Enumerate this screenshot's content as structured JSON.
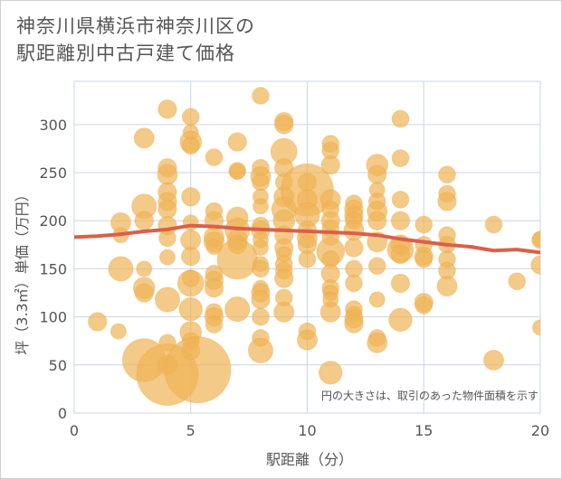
{
  "title_lines": [
    "神奈川県横浜市神奈川区の",
    "駅距離別中古戸建て価格"
  ],
  "chart_data": {
    "type": "scatter",
    "title": "神奈川県横浜市神奈川区の駅距離別中古戸建て価格",
    "xlabel": "駅距離（分）",
    "ylabel": "坪（3.3㎡）単価（万円）",
    "xlim": [
      0,
      20
    ],
    "ylim": [
      0,
      345
    ],
    "xticks": [
      0,
      5,
      10,
      15,
      20
    ],
    "yticks": [
      0,
      50,
      100,
      150,
      200,
      250,
      300
    ],
    "grid": true,
    "annotation": "円の大きさは、取引のあった物件面積を示す",
    "colors": {
      "bubble": "#f0b455",
      "trend": "#d9604a",
      "grid": "#c9d6e3"
    },
    "points": [
      {
        "x": 1,
        "y": 95,
        "s": 1.2
      },
      {
        "x": 1.9,
        "y": 85,
        "s": 1.0
      },
      {
        "x": 2,
        "y": 185,
        "s": 1.0
      },
      {
        "x": 2,
        "y": 198,
        "s": 1.3
      },
      {
        "x": 2,
        "y": 150,
        "s": 1.6
      },
      {
        "x": 3,
        "y": 286,
        "s": 1.3
      },
      {
        "x": 3,
        "y": 215,
        "s": 1.6
      },
      {
        "x": 3,
        "y": 200,
        "s": 1.2
      },
      {
        "x": 3,
        "y": 150,
        "s": 1.0
      },
      {
        "x": 3,
        "y": 130,
        "s": 1.4
      },
      {
        "x": 3,
        "y": 125,
        "s": 1.2
      },
      {
        "x": 3,
        "y": 55,
        "s": 2.8
      },
      {
        "x": 4,
        "y": 316,
        "s": 1.2
      },
      {
        "x": 4,
        "y": 255,
        "s": 1.2
      },
      {
        "x": 4,
        "y": 248,
        "s": 1.3
      },
      {
        "x": 4,
        "y": 230,
        "s": 1.2
      },
      {
        "x": 4,
        "y": 220,
        "s": 1.2
      },
      {
        "x": 4,
        "y": 212,
        "s": 1.2
      },
      {
        "x": 4,
        "y": 195,
        "s": 1.2
      },
      {
        "x": 4,
        "y": 182,
        "s": 1.1
      },
      {
        "x": 4,
        "y": 162,
        "s": 1.0
      },
      {
        "x": 4,
        "y": 118,
        "s": 1.6
      },
      {
        "x": 4,
        "y": 73,
        "s": 1.1
      },
      {
        "x": 4,
        "y": 50,
        "s": 1.3
      },
      {
        "x": 4,
        "y": 40,
        "s": 4.0
      },
      {
        "x": 5,
        "y": 308,
        "s": 1.1
      },
      {
        "x": 5,
        "y": 292,
        "s": 1.0
      },
      {
        "x": 5,
        "y": 282,
        "s": 1.4
      },
      {
        "x": 5,
        "y": 278,
        "s": 1.1
      },
      {
        "x": 5,
        "y": 225,
        "s": 1.2
      },
      {
        "x": 5,
        "y": 198,
        "s": 1.0
      },
      {
        "x": 5,
        "y": 180,
        "s": 1.3
      },
      {
        "x": 5,
        "y": 163,
        "s": 1.2
      },
      {
        "x": 5,
        "y": 140,
        "s": 1.1
      },
      {
        "x": 5,
        "y": 135,
        "s": 1.7
      },
      {
        "x": 5,
        "y": 108,
        "s": 1.5
      },
      {
        "x": 5,
        "y": 84,
        "s": 1.4
      },
      {
        "x": 5,
        "y": 75,
        "s": 1.1
      },
      {
        "x": 5,
        "y": 65,
        "s": 1.2
      },
      {
        "x": 5.3,
        "y": 45,
        "s": 4.3
      },
      {
        "x": 6,
        "y": 266,
        "s": 1.1
      },
      {
        "x": 6,
        "y": 210,
        "s": 1.1
      },
      {
        "x": 6,
        "y": 200,
        "s": 1.2
      },
      {
        "x": 6,
        "y": 183,
        "s": 1.3
      },
      {
        "x": 6,
        "y": 178,
        "s": 1.3
      },
      {
        "x": 6,
        "y": 173,
        "s": 1.0
      },
      {
        "x": 6,
        "y": 145,
        "s": 1.1
      },
      {
        "x": 6,
        "y": 138,
        "s": 1.2
      },
      {
        "x": 6,
        "y": 130,
        "s": 1.2
      },
      {
        "x": 6,
        "y": 105,
        "s": 1.1
      },
      {
        "x": 6,
        "y": 100,
        "s": 1.2
      },
      {
        "x": 6,
        "y": 92,
        "s": 1.1
      },
      {
        "x": 7,
        "y": 282,
        "s": 1.2
      },
      {
        "x": 7,
        "y": 252,
        "s": 1.1
      },
      {
        "x": 7,
        "y": 251,
        "s": 1.0
      },
      {
        "x": 7,
        "y": 203,
        "s": 1.4
      },
      {
        "x": 7,
        "y": 190,
        "s": 1.6
      },
      {
        "x": 7,
        "y": 180,
        "s": 1.3
      },
      {
        "x": 7,
        "y": 175,
        "s": 1.2
      },
      {
        "x": 7,
        "y": 160,
        "s": 2.6
      },
      {
        "x": 7,
        "y": 108,
        "s": 1.6
      },
      {
        "x": 8,
        "y": 330,
        "s": 1.1
      },
      {
        "x": 8,
        "y": 255,
        "s": 1.1
      },
      {
        "x": 8,
        "y": 246,
        "s": 1.3
      },
      {
        "x": 8,
        "y": 240,
        "s": 1.1
      },
      {
        "x": 8,
        "y": 225,
        "s": 1.0
      },
      {
        "x": 8,
        "y": 215,
        "s": 1.0
      },
      {
        "x": 8,
        "y": 195,
        "s": 1.1
      },
      {
        "x": 8,
        "y": 190,
        "s": 1.2
      },
      {
        "x": 8,
        "y": 180,
        "s": 1.0
      },
      {
        "x": 8,
        "y": 172,
        "s": 1.0
      },
      {
        "x": 8,
        "y": 155,
        "s": 1.0
      },
      {
        "x": 8,
        "y": 150,
        "s": 1.1
      },
      {
        "x": 8,
        "y": 130,
        "s": 1.0
      },
      {
        "x": 8,
        "y": 125,
        "s": 1.2
      },
      {
        "x": 8,
        "y": 118,
        "s": 1.2
      },
      {
        "x": 8,
        "y": 100,
        "s": 1.1
      },
      {
        "x": 8,
        "y": 78,
        "s": 1.1
      },
      {
        "x": 8,
        "y": 65,
        "s": 1.6
      },
      {
        "x": 9,
        "y": 303,
        "s": 1.2
      },
      {
        "x": 9,
        "y": 300,
        "s": 1.2
      },
      {
        "x": 9,
        "y": 272,
        "s": 1.7
      },
      {
        "x": 9,
        "y": 255,
        "s": 1.2
      },
      {
        "x": 9,
        "y": 240,
        "s": 1.1
      },
      {
        "x": 9,
        "y": 225,
        "s": 1.3
      },
      {
        "x": 9,
        "y": 212,
        "s": 1.6
      },
      {
        "x": 9,
        "y": 200,
        "s": 1.4
      },
      {
        "x": 9,
        "y": 185,
        "s": 1.2
      },
      {
        "x": 9,
        "y": 172,
        "s": 1.2
      },
      {
        "x": 9,
        "y": 165,
        "s": 1.0
      },
      {
        "x": 9,
        "y": 155,
        "s": 1.1
      },
      {
        "x": 9,
        "y": 148,
        "s": 1.1
      },
      {
        "x": 9,
        "y": 140,
        "s": 1.2
      },
      {
        "x": 9,
        "y": 120,
        "s": 1.1
      },
      {
        "x": 9,
        "y": 105,
        "s": 1.3
      },
      {
        "x": 10,
        "y": 240,
        "s": 1.2
      },
      {
        "x": 10,
        "y": 232,
        "s": 3.4
      },
      {
        "x": 10,
        "y": 222,
        "s": 1.3
      },
      {
        "x": 10,
        "y": 206,
        "s": 1.6
      },
      {
        "x": 10,
        "y": 190,
        "s": 1.2
      },
      {
        "x": 10,
        "y": 182,
        "s": 1.3
      },
      {
        "x": 10,
        "y": 175,
        "s": 1.2
      },
      {
        "x": 10,
        "y": 160,
        "s": 1.1
      },
      {
        "x": 10,
        "y": 85,
        "s": 1.1
      },
      {
        "x": 10,
        "y": 76,
        "s": 1.3
      },
      {
        "x": 11,
        "y": 280,
        "s": 1.1
      },
      {
        "x": 11,
        "y": 273,
        "s": 1.1
      },
      {
        "x": 11,
        "y": 258,
        "s": 1.2
      },
      {
        "x": 11,
        "y": 222,
        "s": 1.3
      },
      {
        "x": 11,
        "y": 212,
        "s": 1.1
      },
      {
        "x": 11,
        "y": 200,
        "s": 1.2
      },
      {
        "x": 11,
        "y": 192,
        "s": 1.1
      },
      {
        "x": 11,
        "y": 183,
        "s": 1.1
      },
      {
        "x": 11,
        "y": 168,
        "s": 1.8
      },
      {
        "x": 11,
        "y": 160,
        "s": 1.1
      },
      {
        "x": 11,
        "y": 145,
        "s": 1.2
      },
      {
        "x": 11,
        "y": 130,
        "s": 1.1
      },
      {
        "x": 11,
        "y": 125,
        "s": 1.0
      },
      {
        "x": 11,
        "y": 118,
        "s": 1.0
      },
      {
        "x": 11,
        "y": 105,
        "s": 1.3
      },
      {
        "x": 11,
        "y": 42,
        "s": 1.5
      },
      {
        "x": 12,
        "y": 218,
        "s": 1.1
      },
      {
        "x": 12,
        "y": 212,
        "s": 1.2
      },
      {
        "x": 12,
        "y": 205,
        "s": 1.2
      },
      {
        "x": 12,
        "y": 200,
        "s": 1.1
      },
      {
        "x": 12,
        "y": 190,
        "s": 1.3
      },
      {
        "x": 12,
        "y": 172,
        "s": 1.2
      },
      {
        "x": 12,
        "y": 150,
        "s": 1.1
      },
      {
        "x": 12,
        "y": 135,
        "s": 1.1
      },
      {
        "x": 12,
        "y": 108,
        "s": 1.1
      },
      {
        "x": 12,
        "y": 103,
        "s": 1.0
      },
      {
        "x": 12,
        "y": 98,
        "s": 1.2
      },
      {
        "x": 12,
        "y": 93,
        "s": 1.2
      },
      {
        "x": 13,
        "y": 258,
        "s": 1.4
      },
      {
        "x": 13,
        "y": 248,
        "s": 1.2
      },
      {
        "x": 13,
        "y": 232,
        "s": 1.0
      },
      {
        "x": 13,
        "y": 220,
        "s": 1.1
      },
      {
        "x": 13,
        "y": 210,
        "s": 1.3
      },
      {
        "x": 13,
        "y": 200,
        "s": 1.2
      },
      {
        "x": 13,
        "y": 178,
        "s": 1.3
      },
      {
        "x": 13,
        "y": 153,
        "s": 1.1
      },
      {
        "x": 13,
        "y": 118,
        "s": 1.0
      },
      {
        "x": 13,
        "y": 78,
        "s": 1.1
      },
      {
        "x": 13,
        "y": 73,
        "s": 1.3
      },
      {
        "x": 14,
        "y": 306,
        "s": 1.1
      },
      {
        "x": 14,
        "y": 265,
        "s": 1.1
      },
      {
        "x": 14,
        "y": 222,
        "s": 1.1
      },
      {
        "x": 14,
        "y": 200,
        "s": 1.2
      },
      {
        "x": 14,
        "y": 175,
        "s": 1.3
      },
      {
        "x": 14,
        "y": 170,
        "s": 1.7
      },
      {
        "x": 14,
        "y": 165,
        "s": 1.2
      },
      {
        "x": 14,
        "y": 135,
        "s": 1.2
      },
      {
        "x": 14,
        "y": 97,
        "s": 1.5
      },
      {
        "x": 15,
        "y": 196,
        "s": 1.1
      },
      {
        "x": 15,
        "y": 175,
        "s": 1.1
      },
      {
        "x": 15,
        "y": 163,
        "s": 1.2
      },
      {
        "x": 15,
        "y": 160,
        "s": 1.1
      },
      {
        "x": 15,
        "y": 115,
        "s": 1.2
      },
      {
        "x": 15,
        "y": 112,
        "s": 1.1
      },
      {
        "x": 16,
        "y": 248,
        "s": 1.1
      },
      {
        "x": 16,
        "y": 228,
        "s": 1.1
      },
      {
        "x": 16,
        "y": 220,
        "s": 1.2
      },
      {
        "x": 16,
        "y": 185,
        "s": 1.1
      },
      {
        "x": 16,
        "y": 175,
        "s": 1.1
      },
      {
        "x": 16,
        "y": 160,
        "s": 1.1
      },
      {
        "x": 16,
        "y": 148,
        "s": 1.1
      },
      {
        "x": 16,
        "y": 132,
        "s": 1.3
      },
      {
        "x": 18,
        "y": 196,
        "s": 1.1
      },
      {
        "x": 18,
        "y": 55,
        "s": 1.3
      },
      {
        "x": 19,
        "y": 137,
        "s": 1.1
      },
      {
        "x": 20,
        "y": 181,
        "s": 1.0
      },
      {
        "x": 20,
        "y": 180,
        "s": 1.1
      },
      {
        "x": 20,
        "y": 154,
        "s": 1.2
      },
      {
        "x": 20,
        "y": 89,
        "s": 1.0
      }
    ],
    "trend": {
      "x": [
        0,
        1,
        2,
        3,
        4,
        5,
        6,
        7,
        8,
        9,
        10,
        11,
        12,
        13,
        14,
        15,
        16,
        17,
        18,
        19,
        20
      ],
      "y": [
        183,
        184,
        186,
        189,
        191,
        195,
        194,
        192,
        191,
        190,
        189,
        188,
        187,
        185,
        181,
        178,
        175,
        173,
        169,
        170,
        167
      ]
    }
  }
}
